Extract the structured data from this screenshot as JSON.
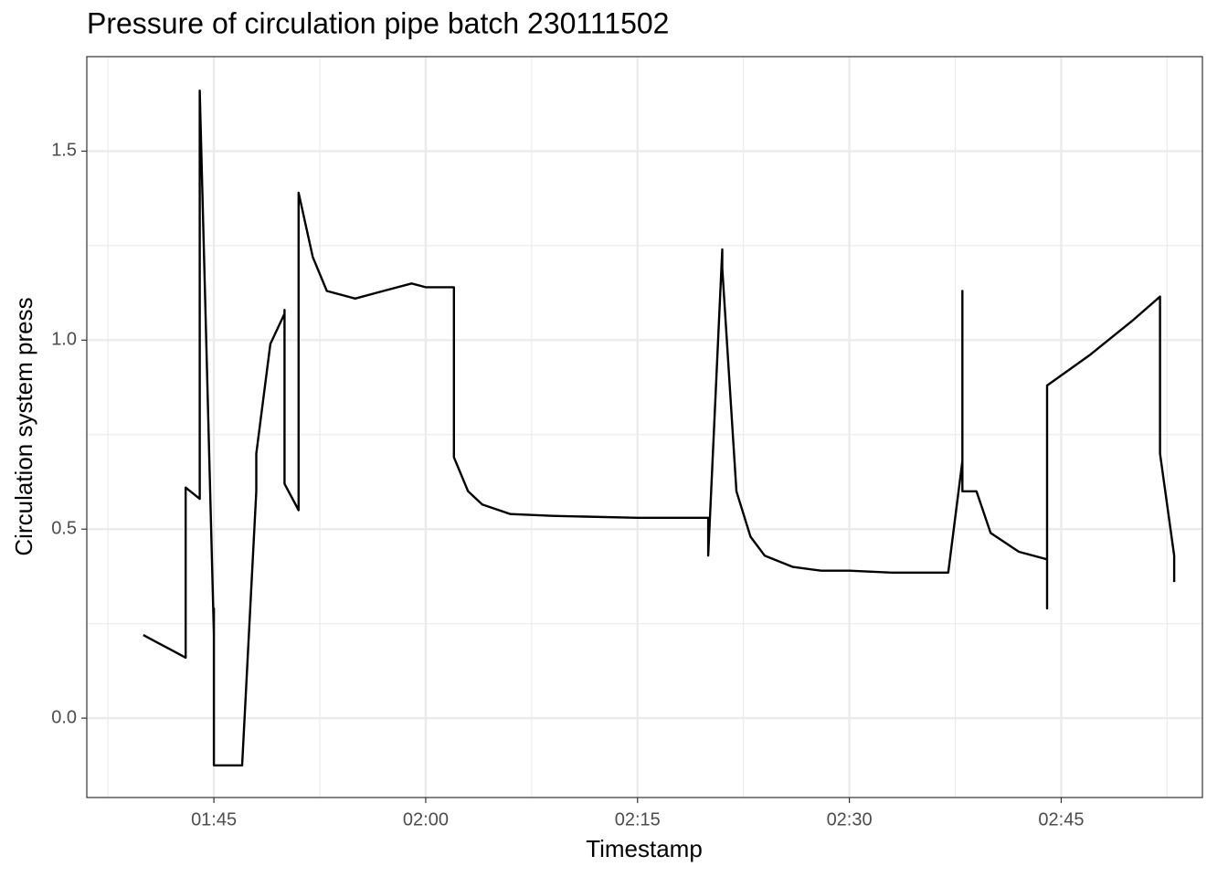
{
  "chart_data": {
    "type": "line",
    "title": "Pressure of circulation pipe batch 230111502",
    "x_label": "Timestamp",
    "y_label": "Circulation system press",
    "x": [
      "01:40",
      "01:41",
      "01:42",
      "01:43",
      "01:43",
      "01:44",
      "01:44",
      "01:45",
      "01:45",
      "01:45",
      "01:45",
      "01:47",
      "01:48",
      "01:48",
      "01:49",
      "01:50",
      "01:50",
      "01:50",
      "01:51",
      "01:51",
      "01:52",
      "01:53",
      "01:55",
      "01:57",
      "01:59",
      "02:00",
      "02:02",
      "02:02",
      "02:03",
      "02:04",
      "02:06",
      "02:09",
      "02:15",
      "02:20",
      "02:20",
      "02:21",
      "02:21",
      "02:22",
      "02:23",
      "02:24",
      "02:26",
      "02:28",
      "02:30",
      "02:33",
      "02:37",
      "02:38",
      "02:38",
      "02:38",
      "02:39",
      "02:40",
      "02:42",
      "02:44",
      "02:44",
      "02:44",
      "02:47",
      "02:50",
      "02:52",
      "02:52",
      "02:52",
      "02:53",
      "02:53"
    ],
    "series": [
      {
        "name": "Circulation system press",
        "color": "#000000",
        "values": [
          0.22,
          0.2,
          0.18,
          0.16,
          0.61,
          0.58,
          1.66,
          0.22,
          0.29,
          0.0,
          -0.125,
          -0.125,
          0.6,
          0.7,
          0.99,
          1.07,
          1.08,
          0.62,
          0.55,
          1.39,
          1.22,
          1.13,
          1.11,
          1.13,
          1.15,
          1.14,
          1.14,
          0.69,
          0.6,
          0.565,
          0.54,
          0.535,
          0.53,
          0.53,
          0.43,
          1.24,
          1.19,
          0.6,
          0.48,
          0.43,
          0.4,
          0.39,
          0.39,
          0.385,
          0.385,
          0.68,
          1.13,
          0.6,
          0.6,
          0.49,
          0.44,
          0.42,
          0.29,
          0.88,
          0.96,
          1.05,
          1.115,
          0.8,
          0.7,
          0.43,
          0.36
        ]
      }
    ],
    "xlim": [
      "01:36",
      "02:55"
    ],
    "xticks": [
      "01:45",
      "02:00",
      "02:15",
      "02:30",
      "02:45"
    ],
    "ylim": [
      -0.21,
      1.75
    ],
    "yticks": [
      {
        "value": 0,
        "label": "0.0"
      },
      0.5,
      {
        "value": 1,
        "label": "1.0"
      },
      1.5
    ],
    "grid": true
  }
}
